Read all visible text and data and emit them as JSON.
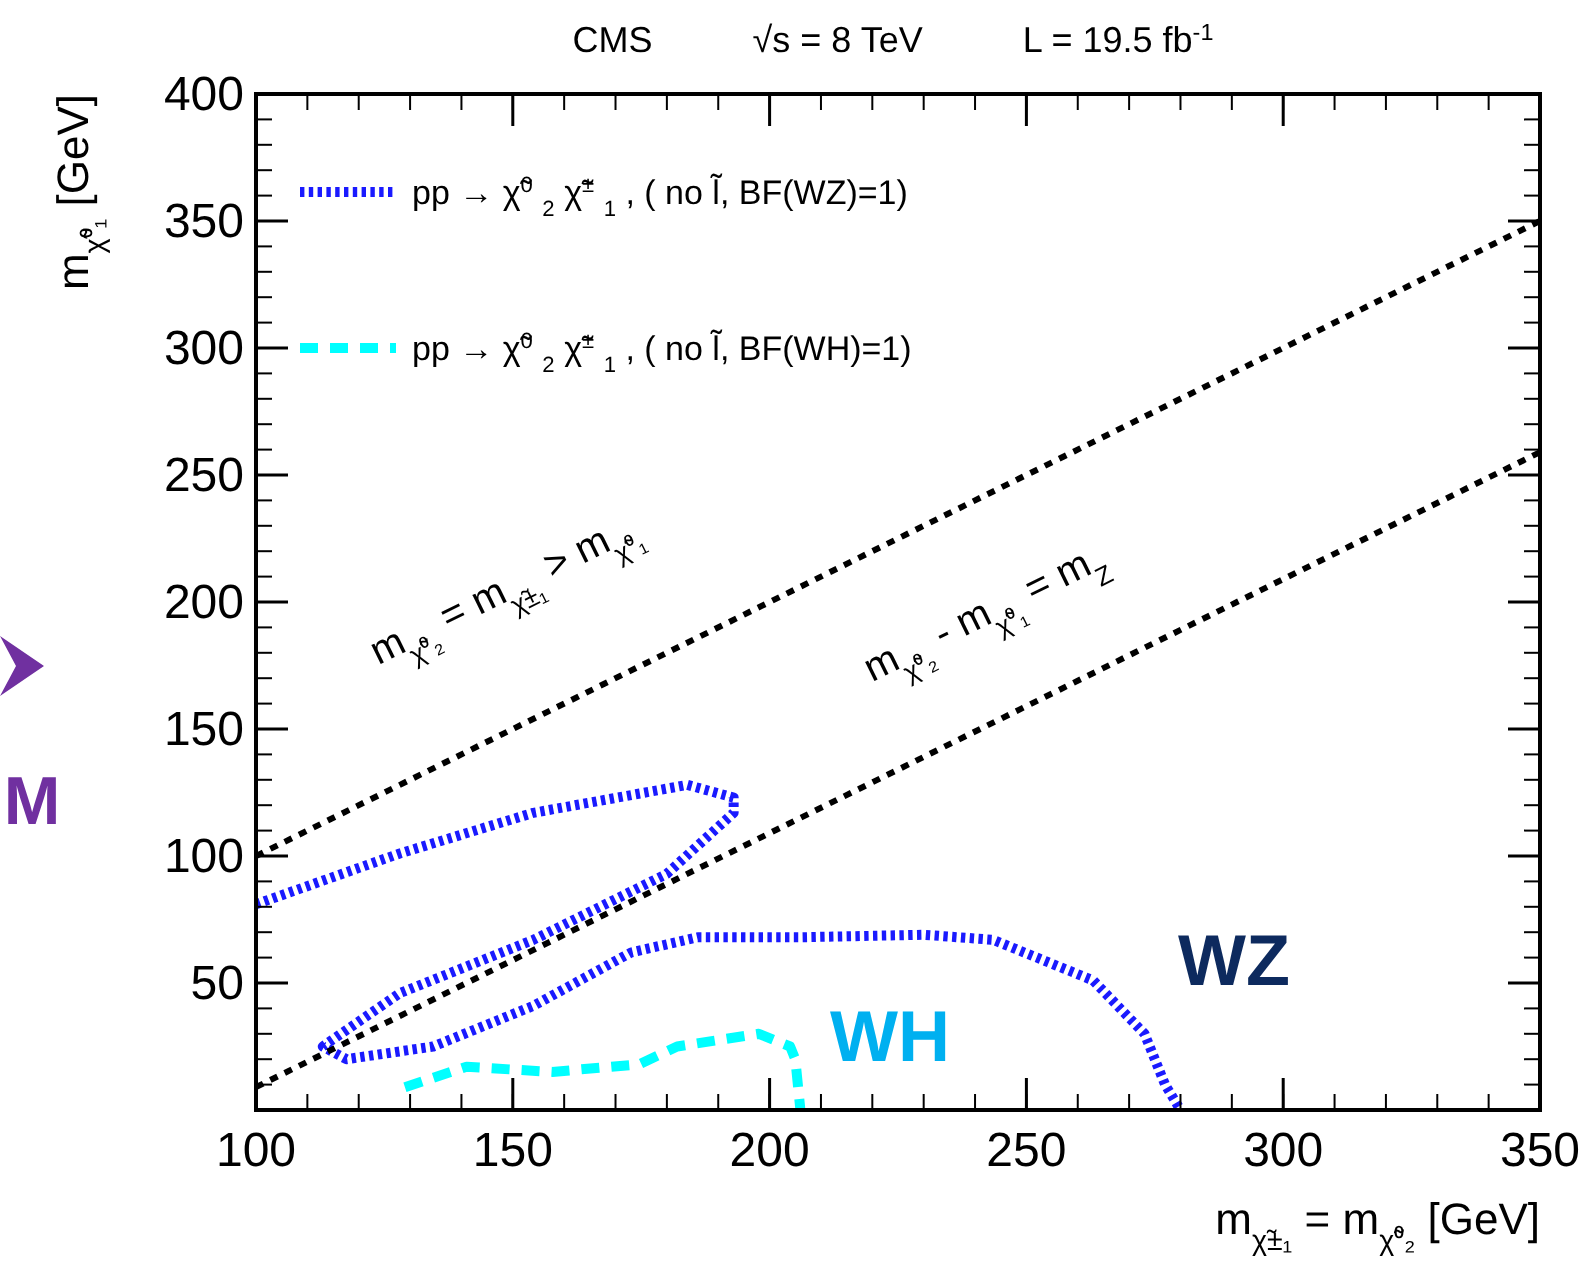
{
  "chart_data": {
    "type": "line",
    "title": "CMS          √s = 8 TeV          L = 19.5 fb$^{-1}$",
    "xlabel": "m$_{χ̃±₁}$ = m$_{χ̃⁰₂}$  [GeV]",
    "ylabel": "m$_{χ̃⁰₁}$  [GeV]",
    "xlim": [
      100,
      350
    ],
    "xticks": [
      100,
      150,
      200,
      250,
      300,
      350
    ],
    "ylim": [
      0,
      400
    ],
    "yticks": [
      50,
      100,
      150,
      200,
      250,
      300,
      350,
      400
    ],
    "legend": "top left",
    "grid": false,
    "series": [
      {
        "name": "pp → χ̃$^{0}$$_{2}$ χ̃$^{±}$$_{1}$, ( no l̃, BF(WZ)=1)",
        "color": "#1a1aff",
        "line_style": "dotted",
        "x": [
          100,
          128,
          154,
          184,
          193,
          193,
          180,
          154,
          128,
          113,
          117.6,
          134.5,
          154,
          173,
          186,
          206,
          230,
          243.5,
          263,
          273,
          277,
          280
        ],
        "values": [
          81,
          101,
          117,
          128,
          123,
          117,
          93,
          67,
          46,
          25,
          20,
          25,
          41,
          62,
          68,
          68,
          69,
          67,
          51,
          30,
          10,
          0
        ]
      },
      {
        "name": "pp → χ̃$^{0}$$_{2}$ χ̃$^{±}$$_{1}$, ( no l̃, BF(WH)=1)",
        "color": "#00ffff",
        "line_style": "dashed",
        "x": [
          129,
          141,
          157.7,
          174.6,
          182,
          197.9,
          204,
          205,
          206
        ],
        "values": [
          9,
          17,
          15,
          18,
          25,
          30,
          25,
          20,
          0
        ]
      },
      {
        "color": "#000000",
        "line_style": "dotted",
        "x": [
          100,
          350
        ],
        "values": [
          100,
          350
        ]
      },
      {
        "color": "#000000",
        "line_style": "dotted",
        "x": [
          100,
          350
        ],
        "values": [
          9,
          259
        ]
      }
    ],
    "annotations": [
      "m$_{χ̃⁰₂}$ = m$_{χ̃±₁}$ > m$_{χ̃⁰₁}$",
      "m$_{χ̃⁰₂}$ - m$_{χ̃⁰₁}$ = m$_{Z}$",
      "WZ",
      "WH",
      "M"
    ]
  }
}
